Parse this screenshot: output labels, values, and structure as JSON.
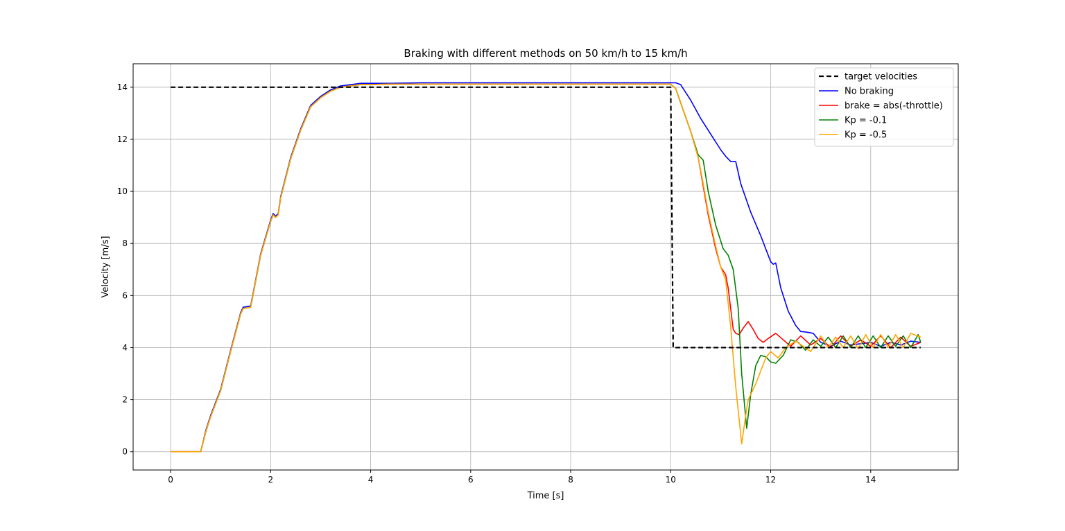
{
  "chart_data": {
    "type": "line",
    "title": "Braking with different methods on 50 km/h to 15 km/h",
    "xlabel": "Time [s]",
    "ylabel": "Velocity [m/s]",
    "xlim": [
      -0.75,
      15.75
    ],
    "ylim": [
      -0.7,
      14.9
    ],
    "xticks": [
      0,
      2,
      4,
      6,
      8,
      10,
      12,
      14
    ],
    "yticks": [
      0,
      2,
      4,
      6,
      8,
      10,
      12,
      14
    ],
    "grid": true,
    "legend_position": "top-right",
    "series": [
      {
        "name": "target velocities",
        "color": "#000000",
        "dash": true,
        "x": [
          0,
          10.0,
          10.05,
          15
        ],
        "y": [
          14,
          14,
          4,
          4
        ]
      },
      {
        "name": "No braking",
        "color": "#0000ff",
        "dash": false,
        "x": [
          0,
          0.6,
          0.7,
          0.8,
          1.0,
          1.2,
          1.4,
          1.45,
          1.6,
          1.65,
          1.8,
          2.0,
          2.05,
          2.1,
          2.15,
          2.2,
          2.4,
          2.6,
          2.8,
          3.0,
          3.2,
          3.4,
          3.6,
          3.8,
          4.0,
          4.4,
          5.0,
          6.0,
          8.0,
          10.0,
          10.05,
          10.1,
          10.2,
          10.4,
          10.6,
          10.8,
          11.0,
          11.1,
          11.2,
          11.25,
          11.3,
          11.4,
          11.6,
          11.8,
          11.9,
          12.0,
          12.05,
          12.1,
          12.2,
          12.35,
          12.5,
          12.6,
          12.7,
          12.85,
          13.0,
          13.2,
          13.4,
          13.6,
          13.8,
          14.0,
          14.2,
          14.4,
          14.6,
          14.8,
          15.0
        ],
        "y": [
          0,
          0,
          0.8,
          1.4,
          2.4,
          3.9,
          5.35,
          5.55,
          5.6,
          6.1,
          7.6,
          8.9,
          9.15,
          9.05,
          9.15,
          9.8,
          11.3,
          12.4,
          13.3,
          13.65,
          13.9,
          14.05,
          14.1,
          14.15,
          14.15,
          14.15,
          14.17,
          14.17,
          14.17,
          14.17,
          14.17,
          14.17,
          14.1,
          13.5,
          12.8,
          12.2,
          11.6,
          11.35,
          11.15,
          11.15,
          11.15,
          10.3,
          9.2,
          8.3,
          7.8,
          7.3,
          7.2,
          7.25,
          6.3,
          5.4,
          4.85,
          4.62,
          4.6,
          4.55,
          4.2,
          4.05,
          4.25,
          4.1,
          4.15,
          4.2,
          4.05,
          4.2,
          4.1,
          4.25,
          4.2
        ]
      },
      {
        "name": "brake = abs(-throttle)",
        "color": "#ff0000",
        "dash": false,
        "x": [
          0,
          0.6,
          0.7,
          0.8,
          1.0,
          1.2,
          1.4,
          1.45,
          1.6,
          1.65,
          1.8,
          2.0,
          2.05,
          2.1,
          2.15,
          2.2,
          2.4,
          2.6,
          2.8,
          3.0,
          3.2,
          3.4,
          3.6,
          3.8,
          4.0,
          4.4,
          5.0,
          6.0,
          8.0,
          10.0,
          10.1,
          10.2,
          10.4,
          10.55,
          10.65,
          10.75,
          10.9,
          11.0,
          11.1,
          11.15,
          11.2,
          11.25,
          11.3,
          11.37,
          11.45,
          11.55,
          11.65,
          11.75,
          11.85,
          11.95,
          12.1,
          12.25,
          12.4,
          12.6,
          12.8,
          13.0,
          13.2,
          13.4,
          13.6,
          13.8,
          14.0,
          14.2,
          14.4,
          14.6,
          14.8,
          15.0
        ],
        "y": [
          0,
          0,
          0.75,
          1.35,
          2.35,
          3.85,
          5.3,
          5.5,
          5.55,
          6.05,
          7.55,
          8.85,
          9.1,
          9.0,
          9.1,
          9.75,
          11.25,
          12.35,
          13.25,
          13.6,
          13.85,
          14.0,
          14.05,
          14.1,
          14.1,
          14.12,
          14.12,
          14.12,
          14.12,
          14.12,
          13.95,
          13.4,
          12.3,
          11.3,
          10.2,
          9.1,
          7.8,
          7.1,
          6.8,
          6.3,
          5.5,
          4.7,
          4.55,
          4.5,
          4.75,
          5.0,
          4.7,
          4.35,
          4.2,
          4.35,
          4.55,
          4.3,
          4.05,
          4.45,
          4.1,
          4.35,
          4.0,
          4.45,
          4.05,
          4.3,
          4.05,
          4.45,
          4.0,
          4.4,
          4.05,
          4.2
        ]
      },
      {
        "name": "Kp = -0.1",
        "color": "#008000",
        "dash": false,
        "x": [
          0,
          0.6,
          0.7,
          0.8,
          1.0,
          1.2,
          1.4,
          1.45,
          1.6,
          1.65,
          1.8,
          2.0,
          2.05,
          2.1,
          2.15,
          2.2,
          2.4,
          2.6,
          2.8,
          3.0,
          3.2,
          3.4,
          3.6,
          3.8,
          4.0,
          4.4,
          5.0,
          6.0,
          8.0,
          10.0,
          10.1,
          10.2,
          10.4,
          10.55,
          10.65,
          10.75,
          10.9,
          11.05,
          11.15,
          11.25,
          11.35,
          11.42,
          11.52,
          11.6,
          11.7,
          11.8,
          11.9,
          12.0,
          12.1,
          12.25,
          12.4,
          12.55,
          12.7,
          12.85,
          13.0,
          13.15,
          13.3,
          13.45,
          13.6,
          13.75,
          13.9,
          14.05,
          14.2,
          14.35,
          14.5,
          14.65,
          14.8,
          14.95,
          15.0
        ],
        "y": [
          0,
          0,
          0.75,
          1.35,
          2.35,
          3.85,
          5.3,
          5.5,
          5.55,
          6.05,
          7.55,
          8.85,
          9.1,
          9.0,
          9.1,
          9.75,
          11.25,
          12.35,
          13.25,
          13.6,
          13.85,
          14.0,
          14.05,
          14.1,
          14.1,
          14.12,
          14.12,
          14.12,
          14.12,
          14.12,
          13.95,
          13.4,
          12.3,
          11.4,
          11.2,
          10.0,
          8.7,
          7.8,
          7.55,
          7.0,
          5.5,
          3.0,
          0.9,
          2.2,
          3.3,
          3.7,
          3.65,
          3.45,
          3.4,
          3.7,
          4.3,
          4.2,
          3.9,
          4.3,
          4.05,
          4.4,
          4.0,
          4.45,
          4.0,
          4.45,
          4.0,
          4.45,
          4.0,
          4.45,
          4.05,
          4.45,
          4.0,
          4.5,
          4.2
        ]
      },
      {
        "name": "Kp = -0.5",
        "color": "#ffa500",
        "dash": false,
        "x": [
          0,
          0.6,
          0.7,
          0.8,
          1.0,
          1.2,
          1.4,
          1.45,
          1.6,
          1.65,
          1.8,
          2.0,
          2.05,
          2.1,
          2.15,
          2.2,
          2.4,
          2.6,
          2.8,
          3.0,
          3.2,
          3.4,
          3.6,
          3.8,
          4.0,
          4.4,
          5.0,
          6.0,
          8.0,
          10.0,
          10.1,
          10.2,
          10.4,
          10.55,
          10.65,
          10.75,
          10.9,
          11.0,
          11.1,
          11.2,
          11.3,
          11.42,
          11.5,
          11.55,
          11.7,
          11.8,
          11.9,
          12.0,
          12.15,
          12.3,
          12.5,
          12.65,
          12.8,
          13.0,
          13.15,
          13.3,
          13.45,
          13.6,
          13.75,
          13.9,
          14.05,
          14.2,
          14.35,
          14.5,
          14.65,
          14.8,
          15.0
        ],
        "y": [
          0,
          0,
          0.75,
          1.35,
          2.35,
          3.85,
          5.3,
          5.5,
          5.55,
          6.05,
          7.55,
          8.85,
          9.1,
          9.0,
          9.1,
          9.75,
          11.25,
          12.35,
          13.25,
          13.6,
          13.85,
          14.0,
          14.05,
          14.1,
          14.1,
          14.12,
          14.12,
          14.12,
          14.12,
          14.12,
          13.95,
          13.4,
          12.3,
          11.3,
          10.3,
          9.2,
          7.9,
          7.1,
          6.6,
          4.8,
          2.5,
          0.3,
          1.4,
          2.0,
          2.6,
          3.1,
          3.6,
          3.85,
          3.6,
          4.0,
          4.25,
          4.05,
          3.85,
          4.45,
          4.0,
          4.4,
          4.0,
          4.45,
          3.95,
          4.5,
          4.0,
          4.5,
          4.0,
          4.5,
          4.0,
          4.55,
          4.4
        ]
      }
    ]
  }
}
